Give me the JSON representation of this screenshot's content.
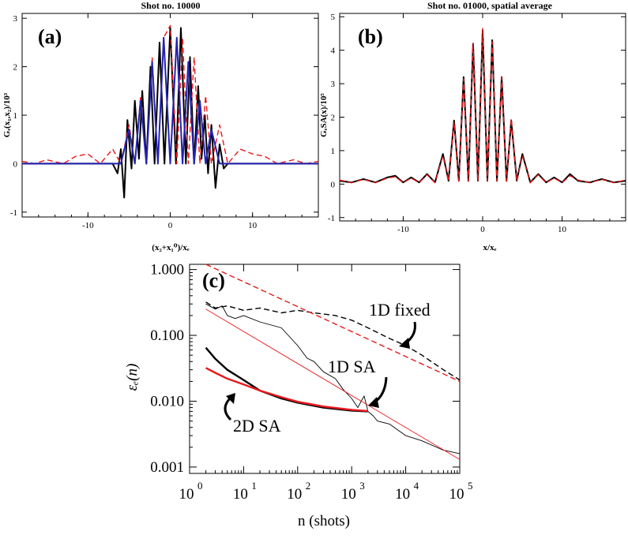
{
  "chart_data": [
    {
      "panel": "(a)",
      "type": "line",
      "title": "Shot no. 10000",
      "xlabel": "(x₂+x₁⁰)/xₑ",
      "ylabel": "Gₑ(x₁,x₂)/10³",
      "xlim": [
        -18,
        18
      ],
      "ylim": [
        -1.1,
        3.1
      ],
      "xticks": [
        -10,
        0,
        10
      ],
      "xtick_labels": [
        "-10",
        "0",
        "10"
      ],
      "yticks": [
        -1,
        0,
        1,
        2,
        3
      ],
      "ytick_labels": [
        "-1",
        "0",
        "1",
        "2",
        "3"
      ],
      "series": [
        {
          "style": "solid black",
          "color": "#000000",
          "x": [
            -18,
            -12,
            -7,
            -6.4,
            -6,
            -5.6,
            -5.2,
            -4.7,
            -4.3,
            -3.8,
            -3.4,
            -2.9,
            -2.4,
            -1.9,
            -1.3,
            -0.7,
            0,
            0.7,
            1.3,
            1.9,
            2.4,
            2.9,
            3.4,
            3.8,
            4.2,
            4.6,
            5,
            5.5,
            6,
            6.5,
            7,
            12,
            18
          ],
          "y": [
            0,
            0,
            0,
            -0.2,
            0.3,
            -0.7,
            0.9,
            -0.1,
            1.3,
            0.1,
            1.5,
            0,
            2,
            0,
            2.5,
            0,
            2.8,
            0,
            2.8,
            0,
            2.2,
            0,
            1.6,
            0.1,
            1,
            -0.2,
            0.8,
            -0.5,
            0.4,
            -0.1,
            0,
            0,
            0
          ]
        },
        {
          "style": "dashed red",
          "color": "#e8191c",
          "x": [
            -18,
            -16.5,
            -15,
            -13,
            -11.5,
            -10,
            -8.5,
            -7,
            -6,
            -5,
            -4.3,
            -3.6,
            -2.9,
            -2.2,
            -1.5,
            -0.8,
            0,
            0.8,
            1.5,
            2.2,
            2.9,
            3.6,
            4.3,
            5,
            6,
            7,
            8.5,
            10,
            11.5,
            13,
            15,
            16.5,
            18
          ],
          "y": [
            0.05,
            0,
            0.08,
            0,
            0.15,
            0.2,
            0,
            0.3,
            0,
            0.8,
            0,
            1.4,
            0,
            2.2,
            0,
            2.6,
            2.85,
            0,
            2.6,
            0,
            2.2,
            0,
            1.4,
            0,
            0.8,
            0,
            0.3,
            0.2,
            0.15,
            0,
            0.08,
            0,
            0.05
          ]
        },
        {
          "style": "solid blue",
          "color": "#2323b4",
          "x": [
            -18,
            -6,
            -5,
            -4.3,
            -3.6,
            -2.9,
            -2.2,
            -1.5,
            -0.8,
            0,
            0.8,
            1.5,
            2.2,
            2.9,
            3.6,
            4.3,
            5,
            6,
            18
          ],
          "y": [
            0,
            0,
            0.7,
            0,
            1.3,
            0,
            2.1,
            0,
            2.6,
            0,
            2.6,
            0,
            2.1,
            0,
            1.3,
            0,
            0.7,
            0,
            0
          ]
        }
      ]
    },
    {
      "panel": "(b)",
      "type": "line",
      "title": "Shot no. 01000, spatial average",
      "xlabel": "x/xₑ",
      "ylabel": "GₑSA(x)/10⁵",
      "xlim": [
        -18,
        18
      ],
      "ylim": [
        -1.1,
        5.1
      ],
      "xticks": [
        -10,
        0,
        10
      ],
      "xtick_labels": [
        "-10",
        "0",
        "10"
      ],
      "yticks": [
        -1,
        0,
        1,
        2,
        3,
        4,
        5
      ],
      "ytick_labels": [
        "-1",
        "0",
        "1",
        "2",
        "3",
        "4",
        "5"
      ],
      "series": [
        {
          "style": "solid black",
          "color": "#000000",
          "x": [
            -18,
            -16.5,
            -15,
            -13.5,
            -12,
            -11,
            -10,
            -9,
            -8,
            -7,
            -6,
            -5,
            -4.3,
            -3.6,
            -3,
            -2.4,
            -1.8,
            -1.2,
            -0.6,
            0,
            0.6,
            1.2,
            1.8,
            2.4,
            3,
            3.6,
            4.3,
            5,
            6,
            7,
            8,
            9,
            10,
            11,
            12,
            13.5,
            15,
            16.5,
            18
          ],
          "y": [
            0.1,
            0.05,
            0.15,
            0.05,
            0.2,
            0.25,
            0.05,
            0.2,
            0.05,
            0.3,
            0.05,
            0.9,
            0.1,
            1.9,
            0.1,
            3.2,
            0.1,
            4.2,
            0.1,
            4.6,
            0.1,
            4.3,
            0.1,
            3.2,
            0.1,
            1.9,
            0.1,
            0.9,
            0.05,
            0.3,
            0.05,
            0.2,
            0.05,
            0.3,
            0.1,
            0.05,
            0.15,
            0.05,
            0.1
          ]
        },
        {
          "style": "dashed red",
          "color": "#e8191c",
          "x": [
            -18,
            -16.5,
            -15,
            -13.5,
            -12,
            -11,
            -10,
            -9,
            -8,
            -7,
            -6,
            -5,
            -4.3,
            -3.6,
            -3,
            -2.4,
            -1.8,
            -1.2,
            -0.6,
            0,
            0.6,
            1.2,
            1.8,
            2.4,
            3,
            3.6,
            4.3,
            5,
            6,
            7,
            8,
            9,
            10,
            11,
            12,
            13.5,
            15,
            16.5,
            18
          ],
          "y": [
            0.12,
            0.04,
            0.14,
            0.04,
            0.18,
            0.22,
            0.04,
            0.18,
            0.04,
            0.28,
            0.04,
            0.85,
            0.08,
            1.85,
            0.08,
            3.15,
            0.08,
            4.2,
            0.08,
            4.65,
            0.08,
            4.25,
            0.08,
            3.2,
            0.08,
            1.95,
            0.08,
            0.85,
            0.04,
            0.28,
            0.04,
            0.18,
            0.04,
            0.25,
            0.12,
            0.04,
            0.14,
            0.04,
            0.12
          ]
        }
      ]
    },
    {
      "panel": "(c)",
      "type": "line",
      "log_x": true,
      "log_y": true,
      "xlabel": "n (shots)",
      "ylabel": "εₑ(n)",
      "xlim": [
        1,
        100000
      ],
      "ylim": [
        0.0008,
        1.2
      ],
      "xticks": [
        1,
        10,
        100,
        1000,
        10000,
        100000
      ],
      "xtick_bases": [
        "10",
        "10",
        "10",
        "10",
        "10",
        "10"
      ],
      "xtick_exps": [
        "0",
        "1",
        "2",
        "3",
        "4",
        "5"
      ],
      "yticks": [
        0.001,
        0.01,
        0.1,
        1
      ],
      "ytick_labels": [
        "0.001",
        "0.010",
        "0.100",
        "1.000"
      ],
      "annotations": {
        "fixed_1d": "1D fixed",
        "sa_1d": "1D SA",
        "sa_2d": "2D SA"
      },
      "series": [
        {
          "style": "dashed black (1D fixed)",
          "color": "#000000",
          "x": [
            2,
            3,
            5,
            10,
            20,
            50,
            100,
            200,
            500,
            1000,
            2000,
            5000,
            10000,
            20000,
            50000,
            100000
          ],
          "y": [
            0.32,
            0.26,
            0.28,
            0.24,
            0.26,
            0.22,
            0.24,
            0.22,
            0.2,
            0.17,
            0.13,
            0.09,
            0.07,
            0.05,
            0.03,
            0.021
          ]
        },
        {
          "style": "dashed red (fixed fit)",
          "color": "#e8191c",
          "x": [
            2,
            100000
          ],
          "y": [
            1.2,
            0.02
          ]
        },
        {
          "style": "thin black (1D SA)",
          "color": "#000000",
          "x": [
            2,
            3,
            4,
            5,
            7,
            10,
            20,
            50,
            100,
            150,
            200,
            300,
            500,
            700,
            1000,
            1300,
            1500,
            1700,
            2000,
            2500,
            3000,
            5000,
            10000,
            20000,
            50000,
            100000
          ],
          "y": [
            0.3,
            0.25,
            0.28,
            0.2,
            0.18,
            0.2,
            0.16,
            0.13,
            0.07,
            0.045,
            0.04,
            0.028,
            0.022,
            0.015,
            0.011,
            0.008,
            0.01,
            0.012,
            0.007,
            0.006,
            0.005,
            0.0045,
            0.003,
            0.0025,
            0.0018,
            0.0016
          ]
        },
        {
          "style": "thin red (SA fit)",
          "color": "#e8191c",
          "x": [
            2,
            100000
          ],
          "y": [
            0.25,
            0.0013
          ]
        },
        {
          "style": "thick black (2D SA)",
          "color": "#000000",
          "x": [
            2,
            3,
            5,
            10,
            20,
            50,
            100,
            300,
            1000,
            2000
          ],
          "y": [
            0.065,
            0.044,
            0.03,
            0.021,
            0.0145,
            0.011,
            0.0095,
            0.008,
            0.0072,
            0.007
          ]
        },
        {
          "style": "thick red (2D SA fit)",
          "color": "#e8191c",
          "x": [
            2,
            3,
            5,
            10,
            20,
            50,
            100,
            300,
            1000,
            2000
          ],
          "y": [
            0.032,
            0.027,
            0.022,
            0.018,
            0.0145,
            0.0115,
            0.0098,
            0.0083,
            0.0074,
            0.0071
          ]
        }
      ]
    }
  ]
}
